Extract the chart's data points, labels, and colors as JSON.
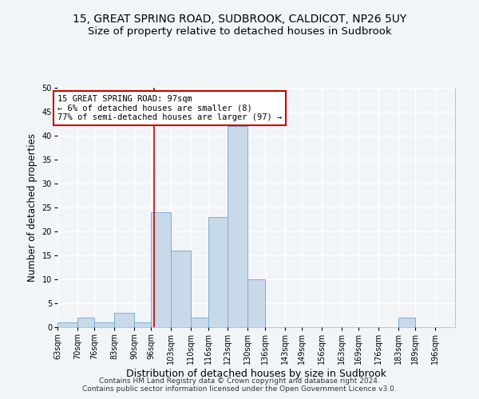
{
  "title1": "15, GREAT SPRING ROAD, SUDBROOK, CALDICOT, NP26 5UY",
  "title2": "Size of property relative to detached houses in Sudbrook",
  "xlabel": "Distribution of detached houses by size in Sudbrook",
  "ylabel": "Number of detached properties",
  "footnote": "Contains HM Land Registry data © Crown copyright and database right 2024.\nContains public sector information licensed under the Open Government Licence v3.0.",
  "bin_labels": [
    "63sqm",
    "70sqm",
    "76sqm",
    "83sqm",
    "90sqm",
    "96sqm",
    "103sqm",
    "110sqm",
    "116sqm",
    "123sqm",
    "130sqm",
    "136sqm",
    "143sqm",
    "149sqm",
    "156sqm",
    "163sqm",
    "169sqm",
    "176sqm",
    "183sqm",
    "189sqm",
    "196sqm"
  ],
  "bin_edges": [
    63,
    70,
    76,
    83,
    90,
    96,
    103,
    110,
    116,
    123,
    130,
    136,
    143,
    149,
    156,
    163,
    169,
    176,
    183,
    189,
    196,
    203
  ],
  "bar_values": [
    1,
    2,
    1,
    3,
    1,
    24,
    16,
    2,
    23,
    42,
    10,
    0,
    0,
    0,
    0,
    0,
    0,
    0,
    2,
    0,
    0
  ],
  "bar_color": "#c8d9ea",
  "bar_edge_color": "#7bafd4",
  "property_line_x": 97,
  "property_line_color": "#cc0000",
  "annotation_text": "15 GREAT SPRING ROAD: 97sqm\n← 6% of detached houses are smaller (8)\n77% of semi-detached houses are larger (97) →",
  "annotation_box_color": "white",
  "annotation_box_edge": "#cc0000",
  "ylim": [
    0,
    50
  ],
  "yticks": [
    0,
    5,
    10,
    15,
    20,
    25,
    30,
    35,
    40,
    45,
    50
  ],
  "background_color": "#f2f5f8",
  "grid_color": "white",
  "title1_fontsize": 10,
  "title2_fontsize": 9.5,
  "xlabel_fontsize": 9,
  "ylabel_fontsize": 8.5,
  "tick_fontsize": 7,
  "footnote_fontsize": 6.5,
  "annotation_fontsize": 7.5
}
